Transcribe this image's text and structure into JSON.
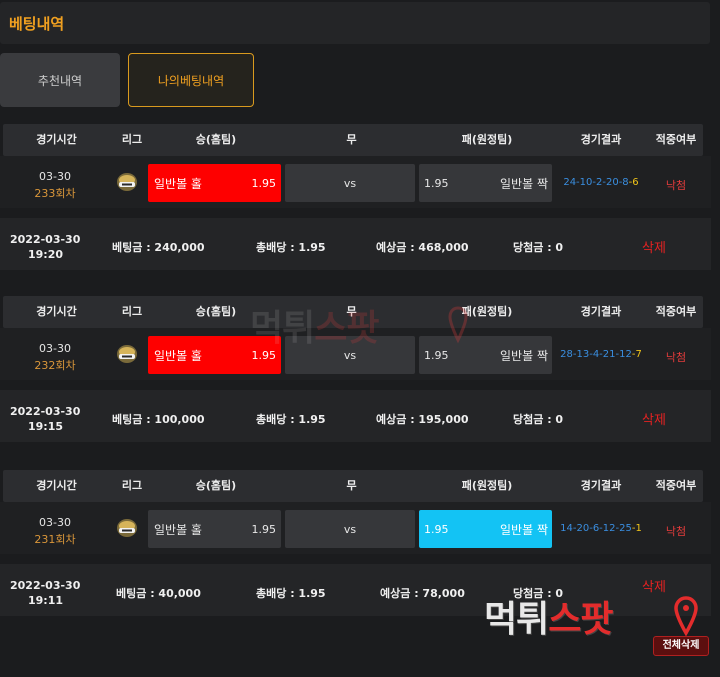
{
  "header": {
    "title": "베팅내역"
  },
  "tabs": [
    {
      "label": "추천내역",
      "active": false
    },
    {
      "label": "나의베팅내역",
      "active": true
    }
  ],
  "columns": [
    "경기시간",
    "리그",
    "승(홈팀)",
    "무",
    "패(원정팀)",
    "경기결과",
    "적중여부"
  ],
  "bets": [
    {
      "date": "03-30",
      "round": "233회차",
      "home": {
        "name": "일반볼 홀",
        "odds": "1.95",
        "selected": true
      },
      "draw": "vs",
      "away": {
        "name": "일반볼 짝",
        "odds": "1.95",
        "selected": false
      },
      "result_main": "24-10-2-20-8",
      "result_last": "-6",
      "hit": "낙첨",
      "placed_date": "2022-03-30",
      "placed_time": "19:20",
      "stake": "베팅금 : 240,000",
      "total_odds": "총배당 : 1.95",
      "expected": "예상금 : 468,000",
      "winnings": "당첨금 : 0",
      "delete_label": "삭제"
    },
    {
      "date": "03-30",
      "round": "232회차",
      "home": {
        "name": "일반볼 홀",
        "odds": "1.95",
        "selected": true
      },
      "draw": "vs",
      "away": {
        "name": "일반볼 짝",
        "odds": "1.95",
        "selected": false
      },
      "result_main": "28-13-4-21-12",
      "result_last": "-7",
      "hit": "낙첨",
      "placed_date": "2022-03-30",
      "placed_time": "19:15",
      "stake": "베팅금 : 100,000",
      "total_odds": "총배당 : 1.95",
      "expected": "예상금 : 195,000",
      "winnings": "당첨금 : 0",
      "delete_label": "삭제"
    },
    {
      "date": "03-30",
      "round": "231회차",
      "home": {
        "name": "일반볼 홀",
        "odds": "1.95",
        "selected": false
      },
      "draw": "vs",
      "away": {
        "name": "일반볼 짝",
        "odds": "1.95",
        "selected": true
      },
      "result_main": "14-20-6-12-25",
      "result_last": "-1",
      "hit": "낙첨",
      "placed_date": "2022-03-30",
      "placed_time": "19:11",
      "stake": "베팅금 : 40,000",
      "total_odds": "총배당 : 1.95",
      "expected": "예상금 : 78,000",
      "winnings": "당첨금 : 0",
      "delete_label": "삭제"
    }
  ],
  "watermark": {
    "part1": "먹튀",
    "part2": "스팟"
  },
  "delete_all_label": "전체삭제",
  "colors": {
    "accent": "#f0a020",
    "home_selected": "#fe0000",
    "away_selected": "#13c3f4",
    "miss": "#e43b3b"
  }
}
